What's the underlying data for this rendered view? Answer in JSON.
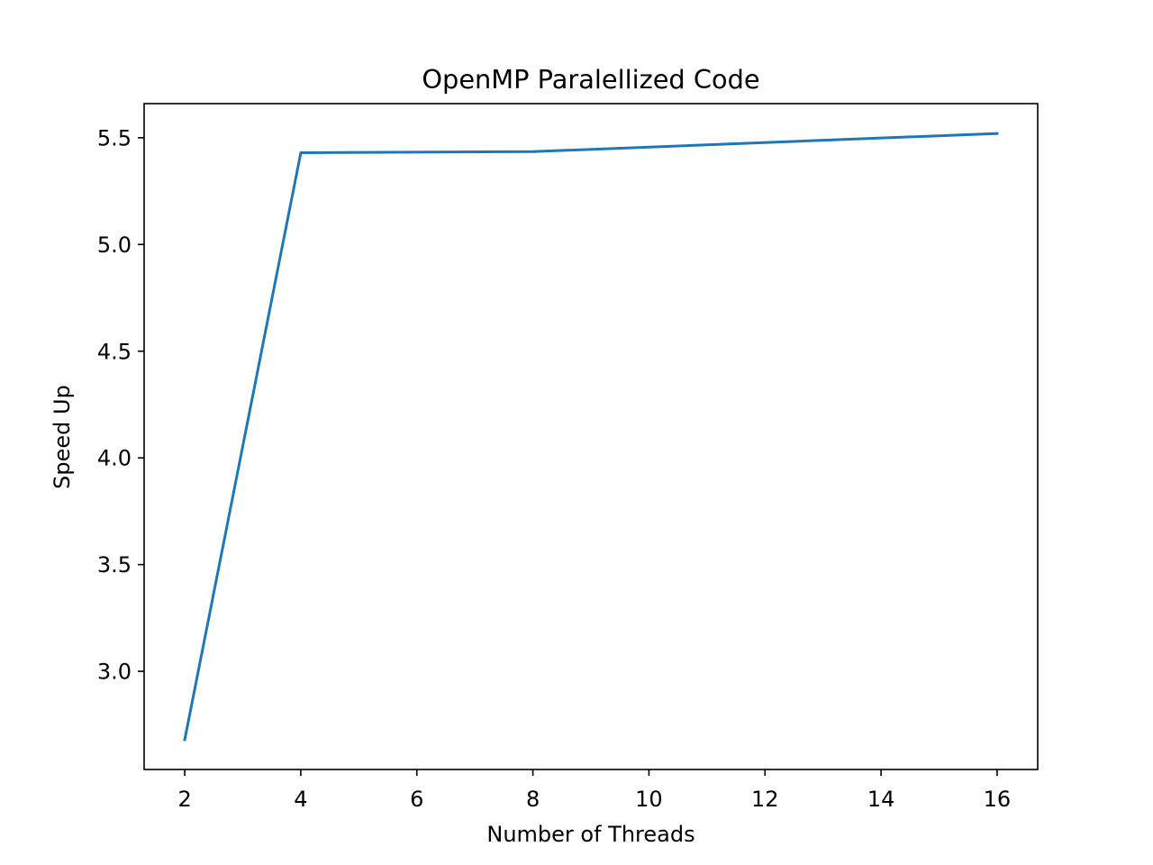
{
  "chart_data": {
    "type": "line",
    "title": "OpenMP Paralellized Code",
    "xlabel": "Number of Threads",
    "ylabel": "Speed Up",
    "x": [
      2,
      4,
      8,
      16
    ],
    "series": [
      {
        "values": [
          2.68,
          5.43,
          5.435,
          5.52
        ],
        "color": "#1f77b4"
      }
    ],
    "xlim": [
      1.3,
      16.7
    ],
    "ylim": [
      2.54,
      5.66
    ],
    "xticks": [
      2,
      4,
      6,
      8,
      10,
      12,
      14,
      16
    ],
    "xtick_labels": [
      "2",
      "4",
      "6",
      "8",
      "10",
      "12",
      "14",
      "16"
    ],
    "yticks": [
      3.0,
      3.5,
      4.0,
      4.5,
      5.0,
      5.5
    ],
    "ytick_labels": [
      "3.0",
      "3.5",
      "4.0",
      "4.5",
      "5.0",
      "5.5"
    ],
    "grid": false,
    "legend": false
  }
}
